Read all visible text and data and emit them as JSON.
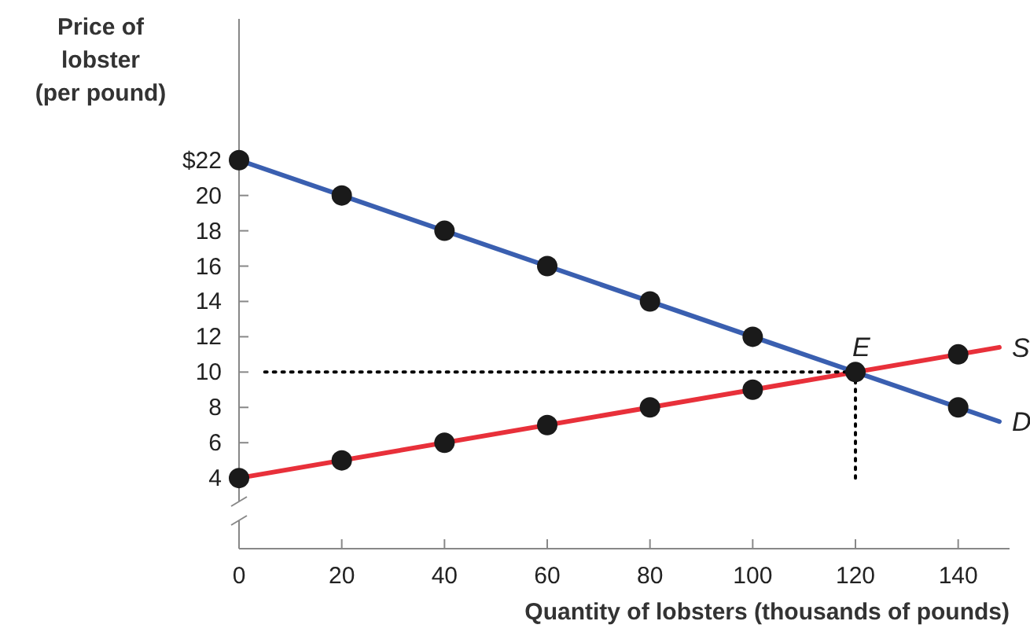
{
  "chart_data": {
    "type": "line",
    "xlabel": "Quantity of lobsters (thousands of pounds)",
    "ylabel": "Price of\nlobster\n(per pound)",
    "xlim": [
      0,
      150
    ],
    "xticks": [
      0,
      20,
      40,
      60,
      80,
      100,
      120,
      140
    ],
    "ylim": [
      0,
      30
    ],
    "yticks": [
      4,
      6,
      8,
      10,
      12,
      14,
      16,
      18,
      20,
      {
        "value": 22,
        "label": "$22"
      }
    ],
    "grid": false,
    "marker": "circle",
    "series": [
      {
        "name": "D",
        "color": "#3a5fb0",
        "x": [
          0,
          148
        ],
        "values": [
          22,
          7.2
        ],
        "marker": "none"
      },
      {
        "name": "S",
        "color": "#e8303a",
        "x": [
          0,
          148
        ],
        "values": [
          4,
          11.4
        ],
        "marker": "none"
      },
      {
        "type": "line",
        "color": "#000000",
        "x": [
          5,
          120
        ],
        "values": [
          10,
          10
        ],
        "marker": "none",
        "line_style": "dotted"
      },
      {
        "type": "line",
        "color": "#000000",
        "x": [
          120,
          120
        ],
        "values": [
          10,
          4
        ],
        "marker": "none",
        "line_style": "dotted"
      },
      {
        "type": "scatter",
        "color": "#1a1a1a",
        "x": [
          0,
          20,
          40,
          60,
          80,
          100,
          120,
          140
        ],
        "values": [
          22,
          20,
          18,
          16,
          14,
          12,
          10,
          8
        ]
      },
      {
        "type": "scatter",
        "color": "#1a1a1a",
        "x": [
          0,
          20,
          40,
          60,
          80,
          100,
          140
        ],
        "values": [
          4,
          5,
          6,
          7,
          8,
          9,
          11
        ]
      }
    ],
    "annotations": [
      {
        "text": "E",
        "x": 120,
        "y": 10
      }
    ]
  }
}
